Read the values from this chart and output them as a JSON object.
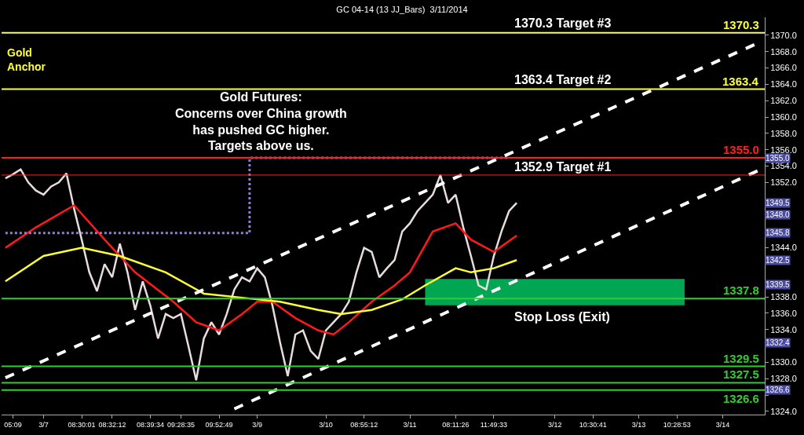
{
  "chart_data": {
    "type": "line",
    "title": "GC 04-14 (13 JJ_Bars)  3/11/2014",
    "categories": [
      null,
      "05:09",
      null,
      null,
      null,
      "3/7",
      null,
      null,
      null,
      null,
      "08:30:01",
      null,
      null,
      null,
      "08:32:12",
      null,
      null,
      null,
      null,
      "08:39:34",
      null,
      null,
      null,
      "09:28:35",
      null,
      null,
      null,
      null,
      "09:52:49",
      null,
      null,
      null,
      null,
      "3/9",
      null,
      null,
      null,
      null,
      null,
      null,
      null,
      null,
      "3/10",
      null,
      null,
      null,
      null,
      "08:55:12",
      null,
      null,
      null,
      null,
      null,
      "3/11",
      null,
      null,
      null,
      null,
      null,
      "08:11:26",
      null,
      null,
      null,
      null,
      "11:49:33",
      null,
      null,
      null,
      null,
      null,
      null,
      null,
      "3/12",
      null,
      null,
      null,
      null,
      "10:30:41",
      null,
      null,
      null,
      null,
      null,
      "3/13",
      null,
      null,
      null,
      null,
      "10:28:53",
      null,
      null,
      null,
      null,
      null,
      "3/14",
      null,
      null,
      null,
      null,
      null
    ],
    "ylim": [
      1323.6,
      1372.2
    ],
    "yticks": [
      {
        "value": 1324,
        "label": "1324.0"
      },
      {
        "value": 1326,
        "label": null
      },
      {
        "value": 1328,
        "label": "1328.0"
      },
      {
        "value": 1330,
        "label": "1330.0"
      },
      {
        "value": 1332,
        "label": null
      },
      {
        "value": 1334,
        "label": "1334.0"
      },
      {
        "value": 1336,
        "label": "1336.0"
      },
      {
        "value": 1338,
        "label": "1338.0"
      },
      {
        "value": 1340,
        "label": null
      },
      {
        "value": 1342,
        "label": null
      },
      {
        "value": 1344,
        "label": "1344.0"
      },
      {
        "value": 1346,
        "label": null
      },
      {
        "value": 1348,
        "label": null
      },
      {
        "value": 1350,
        "label": null
      },
      {
        "value": 1352,
        "label": "1352.0"
      },
      {
        "value": 1354,
        "label": "1354.0"
      },
      {
        "value": 1356,
        "label": "1356.0"
      },
      {
        "value": 1358,
        "label": "1358.0"
      },
      {
        "value": 1360,
        "label": "1360.0"
      },
      {
        "value": 1362,
        "label": "1362.0"
      },
      {
        "value": 1364,
        "label": "1364.0"
      },
      {
        "value": 1366,
        "label": "1366.0"
      },
      {
        "value": 1368,
        "label": "1368.0"
      },
      {
        "value": 1370,
        "label": "1370.0"
      }
    ],
    "series": [
      {
        "color": "#e8dcdc",
        "values": [
          1352.5,
          1353.0,
          1353.6,
          1352.0,
          1351.0,
          1350.5,
          1351.5,
          1352.0,
          1353.1,
          1348.8,
          1345.0,
          1341.0,
          1338.7,
          1342.0,
          1340.4,
          1344.5,
          1341.0,
          1336.4,
          1339.9,
          1336.9,
          1332.9,
          1335.9,
          1335.4,
          1335.9,
          1331.9,
          1327.8,
          1332.9,
          1334.9,
          1333.4,
          1335.9,
          1338.9,
          1340.4,
          1339.9,
          1341.5,
          1340.4,
          1336.9,
          1332.4,
          1328.3,
          1333.4,
          1333.9,
          1331.4,
          1330.4,
          1333.9,
          1334.9,
          1335.9,
          1337.4,
          1341.0,
          1344.0,
          1343.5,
          1340.4,
          1341.5,
          1342.5,
          1346.0,
          1347.0,
          1348.5,
          1349.5,
          1350.5,
          1352.9,
          1349.5,
          1350.5,
          1346.5,
          1343.0,
          1339.4,
          1338.9,
          1343.0,
          1346.0,
          1348.5,
          1349.5,
          null,
          null,
          null,
          null,
          null,
          null,
          null,
          null,
          null,
          null,
          null,
          null,
          null,
          null,
          null,
          null,
          null,
          null,
          null,
          null,
          null,
          null,
          null,
          null,
          null,
          null,
          null,
          null,
          null,
          null,
          null,
          null
        ]
      },
      {
        "color": "#ff1a1a",
        "values": [
          1344.0,
          null,
          null,
          null,
          1346.5,
          null,
          null,
          null,
          null,
          1349.2,
          null,
          null,
          null,
          1345.0,
          null,
          null,
          null,
          1341.0,
          null,
          null,
          null,
          null,
          1337.4,
          null,
          null,
          1334.9,
          null,
          null,
          1333.9,
          null,
          null,
          1335.9,
          null,
          1337.4,
          null,
          1337.4,
          null,
          null,
          1335.4,
          null,
          null,
          1333.9,
          null,
          1333.4,
          null,
          1334.9,
          null,
          null,
          1337.4,
          null,
          null,
          1339.4,
          null,
          1341.0,
          null,
          null,
          1346.0,
          null,
          null,
          1347.0,
          null,
          1345.0,
          null,
          null,
          1343.5,
          null,
          null,
          1345.5,
          null,
          null,
          null,
          null,
          null,
          null,
          null,
          null,
          null,
          null,
          null,
          null,
          null,
          null,
          null,
          null,
          null,
          null,
          null,
          null,
          null,
          null,
          null,
          null,
          null,
          null,
          null,
          null,
          null,
          null,
          null,
          null
        ]
      },
      {
        "color": "#ffff33",
        "values": [
          1339.9,
          null,
          null,
          null,
          null,
          1343.0,
          null,
          null,
          null,
          null,
          1344.0,
          null,
          null,
          null,
          null,
          1343.0,
          null,
          null,
          null,
          null,
          null,
          1341.0,
          null,
          null,
          null,
          null,
          1338.4,
          null,
          null,
          null,
          null,
          1337.9,
          null,
          null,
          null,
          null,
          1337.4,
          null,
          null,
          null,
          null,
          1336.4,
          null,
          null,
          1335.9,
          null,
          null,
          null,
          1336.4,
          null,
          null,
          null,
          1337.7,
          null,
          null,
          1339.4,
          null,
          null,
          null,
          1341.5,
          null,
          1341.0,
          null,
          null,
          1341.5,
          null,
          null,
          1342.5,
          null,
          null,
          null,
          null,
          null,
          null,
          null,
          null,
          null,
          null,
          null,
          null,
          null,
          null,
          null,
          null,
          null,
          null,
          null,
          null,
          null,
          null,
          null,
          null,
          null,
          null,
          null,
          null,
          null,
          null,
          null,
          null
        ]
      },
      {
        "type": "step",
        "color": "#8a7cf0",
        "line_style": "dotted",
        "values": [
          1345.8,
          null,
          null,
          null,
          null,
          null,
          null,
          null,
          null,
          null,
          null,
          null,
          null,
          null,
          null,
          null,
          null,
          null,
          null,
          null,
          null,
          null,
          null,
          null,
          null,
          null,
          null,
          null,
          null,
          null,
          null,
          null,
          1355.0,
          null,
          null,
          null,
          null,
          null,
          null,
          null,
          null,
          null,
          null,
          null,
          null,
          null,
          null,
          null,
          null,
          null,
          null,
          null,
          null,
          null,
          null,
          null,
          null,
          null,
          null,
          null,
          null,
          null,
          null,
          null,
          null,
          null,
          1355.0,
          null,
          null,
          null,
          null,
          null,
          null,
          null,
          null,
          null,
          null,
          null,
          null,
          null,
          null,
          null,
          null,
          null,
          null,
          null,
          null,
          null,
          null,
          null,
          null,
          null,
          null,
          null,
          null,
          null,
          null,
          null,
          null,
          null
        ]
      },
      {
        "color": "#ffffff",
        "line_style": "dashed",
        "values": [
          1328.1,
          null,
          null,
          null,
          null,
          null,
          null,
          null,
          null,
          null,
          null,
          null,
          null,
          null,
          null,
          null,
          null,
          null,
          null,
          null,
          null,
          null,
          null,
          null,
          null,
          null,
          null,
          null,
          null,
          null,
          null,
          null,
          null,
          null,
          null,
          null,
          null,
          null,
          null,
          null,
          null,
          null,
          null,
          null,
          null,
          null,
          null,
          null,
          null,
          null,
          null,
          null,
          null,
          null,
          null,
          null,
          null,
          null,
          null,
          null,
          null,
          null,
          null,
          null,
          null,
          null,
          null,
          null,
          null,
          null,
          null,
          null,
          null,
          null,
          null,
          null,
          null,
          null,
          null,
          null,
          null,
          null,
          null,
          null,
          null,
          null,
          null,
          null,
          null,
          null,
          null,
          null,
          null,
          null,
          null,
          null,
          null,
          null,
          null,
          1369.2
        ]
      },
      {
        "color": "#ffffff",
        "line_style": "dashed",
        "values": [
          null,
          null,
          null,
          null,
          null,
          null,
          null,
          null,
          null,
          null,
          null,
          null,
          null,
          null,
          null,
          null,
          null,
          null,
          null,
          null,
          null,
          null,
          null,
          null,
          null,
          null,
          null,
          null,
          null,
          null,
          1324.3,
          null,
          null,
          null,
          null,
          null,
          null,
          null,
          null,
          null,
          null,
          null,
          null,
          null,
          null,
          null,
          null,
          null,
          null,
          null,
          null,
          null,
          null,
          null,
          null,
          null,
          null,
          null,
          null,
          null,
          null,
          null,
          null,
          null,
          null,
          null,
          null,
          null,
          null,
          null,
          null,
          null,
          null,
          null,
          null,
          null,
          null,
          null,
          null,
          null,
          null,
          null,
          null,
          null,
          null,
          null,
          null,
          null,
          null,
          null,
          null,
          null,
          null,
          null,
          null,
          null,
          null,
          null,
          null,
          1353.6
        ]
      },
      {
        "type": "area",
        "color": "#00a651",
        "values": [
          null,
          null,
          null,
          null,
          null,
          null,
          null,
          null,
          null,
          null,
          null,
          null,
          null,
          null,
          null,
          null,
          null,
          null,
          null,
          null,
          null,
          null,
          null,
          null,
          null,
          null,
          null,
          null,
          null,
          null,
          null,
          null,
          null,
          null,
          null,
          null,
          null,
          null,
          null,
          null,
          null,
          null,
          null,
          null,
          null,
          null,
          null,
          null,
          null,
          null,
          null,
          null,
          null,
          null,
          null,
          1340.1,
          null,
          null,
          null,
          null,
          null,
          null,
          null,
          null,
          null,
          null,
          null,
          null,
          null,
          null,
          null,
          null,
          null,
          null,
          null,
          null,
          null,
          null,
          null,
          null,
          null,
          null,
          null,
          null,
          null,
          null,
          null,
          null,
          null,
          1340.1,
          null,
          null,
          null,
          null,
          null,
          null,
          null,
          null,
          null,
          null
        ]
      },
      {
        "type": "line",
        "color": "#00a651",
        "values": [
          null,
          null,
          null,
          null,
          null,
          null,
          null,
          null,
          null,
          null,
          null,
          null,
          null,
          null,
          null,
          null,
          null,
          null,
          null,
          null,
          null,
          null,
          null,
          null,
          null,
          null,
          null,
          null,
          null,
          null,
          null,
          null,
          null,
          null,
          null,
          null,
          null,
          null,
          null,
          null,
          null,
          null,
          null,
          null,
          null,
          null,
          null,
          null,
          null,
          null,
          null,
          null,
          null,
          null,
          null,
          1337.1,
          null,
          null,
          null,
          null,
          null,
          null,
          null,
          null,
          null,
          null,
          null,
          null,
          null,
          null,
          null,
          null,
          null,
          null,
          null,
          null,
          null,
          null,
          null,
          null,
          null,
          null,
          null,
          null,
          null,
          null,
          null,
          null,
          null,
          1337.1,
          null,
          null,
          null,
          null,
          null,
          null,
          null,
          null,
          null,
          null
        ]
      }
    ],
    "ref_lines": [
      {
        "axis": "y",
        "value": 1370.3,
        "label": "1370.3",
        "color": "#ffff33"
      },
      {
        "axis": "y",
        "value": 1363.4,
        "label": "1363.4",
        "color": "#ffff33"
      },
      {
        "axis": "y",
        "value": 1355.0,
        "label": "1355.0",
        "color": "#ff2020"
      },
      {
        "axis": "y",
        "value": 1352.9,
        "color": "#ff2020"
      },
      {
        "axis": "y",
        "value": 1337.8,
        "label": "1337.8",
        "color": "#33cc33"
      },
      {
        "axis": "y",
        "value": 1329.5,
        "label": "1329.5",
        "color": "#33cc33"
      },
      {
        "axis": "y",
        "value": 1327.5,
        "label": "1327.5",
        "color": "#33cc33"
      },
      {
        "axis": "y",
        "value": 1326.6,
        "label": "1326.6",
        "color": "#33cc33"
      }
    ],
    "annotations": [
      "Gold\nAnchor",
      "Gold Futures:\nConcerns over China growth\nhas pushed GC higher.\nTargets above us.",
      {
        "text": "1370.3 Target #3",
        "y": 1370.3
      },
      {
        "text": "1363.4 Target #2",
        "y": 1363.4
      },
      {
        "text": "1352.9 Target #1",
        "y": 1352.9
      },
      {
        "text": "Stop Loss (Exit)",
        "y": 1337.1
      },
      {
        "text": "1355.0",
        "y": 1355.0
      },
      {
        "text": "1349.5",
        "y": 1349.5
      },
      {
        "text": "1348.0",
        "y": 1348.0
      },
      {
        "text": "1345.8",
        "y": 1345.8
      },
      {
        "text": "1342.5",
        "y": 1342.5
      },
      {
        "text": "1339.5",
        "y": 1339.5
      },
      {
        "text": "1332.4",
        "y": 1332.4
      },
      {
        "text": "1326.6",
        "y": 1326.6
      }
    ],
    "grid": false
  }
}
